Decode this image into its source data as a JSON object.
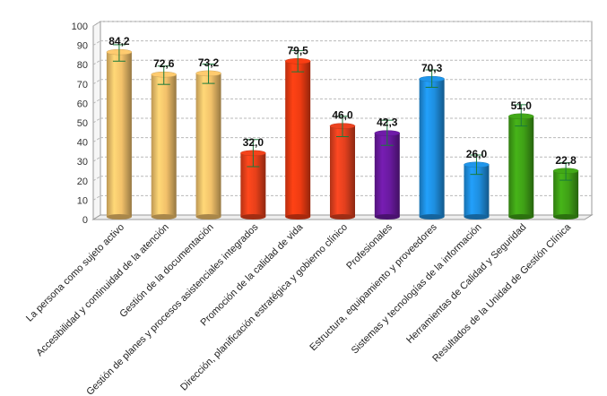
{
  "chart_data": {
    "type": "bar",
    "title": "",
    "xlabel": "",
    "ylabel": "",
    "ylim": [
      0,
      100
    ],
    "yticks": [
      "0",
      "10",
      "20",
      "30",
      "40",
      "50",
      "60",
      "70",
      "80",
      "90",
      "100"
    ],
    "grid": true,
    "legend": "none",
    "error_bars": true,
    "categories": [
      "La persona como sujeto activo",
      "Accesibilidad y continuidad de la atención",
      "Gestión de la documentación",
      "Gestión de planes y procesos asistenciales integrados",
      "Promoción de la calidad de vida",
      "Dirección, planificación estratégica y gobierno clínico",
      "Profesionales",
      "Estructura, equipamiento y proveedores",
      "Sistemas y tecnologías de la información",
      "Herramientas de Calidad y Seguridad",
      "Resultados de la Unidad de Gestión Clínica"
    ],
    "values": [
      84.2,
      72.6,
      73.2,
      32.0,
      79.5,
      46.0,
      42.3,
      70.3,
      26.0,
      51.0,
      22.8
    ],
    "value_labels": [
      "84,2",
      "72,6",
      "73,2",
      "32,0",
      "79,5",
      "46,0",
      "42,3",
      "70,3",
      "26,0",
      "51,0",
      "22,8"
    ],
    "error_low": [
      79.5,
      67.5,
      68.0,
      25.0,
      74.0,
      40.5,
      36.0,
      66.0,
      21.0,
      46.0,
      18.0
    ],
    "error_high": [
      88.0,
      77.0,
      78.0,
      39.0,
      85.0,
      51.0,
      49.0,
      75.0,
      31.0,
      57.0,
      27.0
    ],
    "colors": [
      "#f2c16a",
      "#f2c16a",
      "#f2c16a",
      "#e8401a",
      "#ee3b12",
      "#e2401e",
      "#6a1aa0",
      "#1e8fe0",
      "#1e8fe0",
      "#3fa116",
      "#3fa116"
    ],
    "error_color": "#1a7a3a"
  }
}
